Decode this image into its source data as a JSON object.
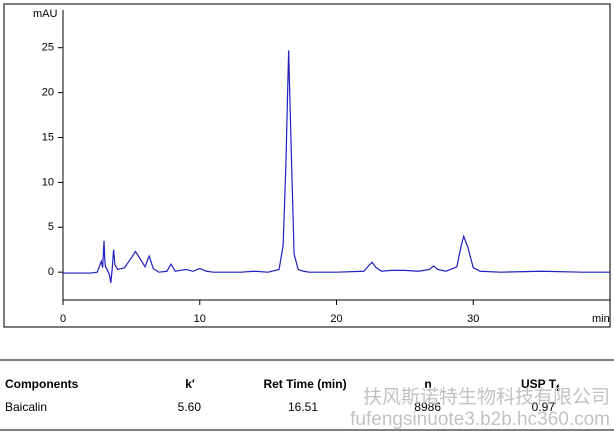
{
  "chart_data": {
    "type": "line",
    "y_axis_label": "mAU",
    "x_axis_label": "min",
    "xlim": [
      0,
      40
    ],
    "xticks": [
      0,
      10,
      20,
      30
    ],
    "ylim": [
      -3.1,
      29.2
    ],
    "yticks": [
      0,
      5,
      10,
      15,
      20,
      25
    ],
    "series": [
      {
        "color": "#1f1fbf",
        "x": [
          0,
          1,
          2,
          2.5,
          2.7,
          2.8,
          2.9,
          3.0,
          3.05,
          3.1,
          3.2,
          3.4,
          3.5,
          3.6,
          3.7,
          3.8,
          4.0,
          4.5,
          5.0,
          5.3,
          5.6,
          6.0,
          6.3,
          6.6,
          7.0,
          7.6,
          7.9,
          8.2,
          9,
          9.5,
          10,
          10.5,
          11,
          13,
          14,
          15,
          15.8,
          16.1,
          16.3,
          16.5,
          16.7,
          16.9,
          17.2,
          17.6,
          18,
          20,
          22,
          22.4,
          22.6,
          22.9,
          23.3,
          24,
          25,
          26,
          26.8,
          27.1,
          27.4,
          28,
          28.8,
          29.1,
          29.3,
          29.6,
          30.0,
          30.5,
          32,
          35,
          38,
          40
        ],
        "values": [
          -0.1,
          -0.1,
          -0.1,
          0,
          0.8,
          1.2,
          0.5,
          3.5,
          1.5,
          0.6,
          0.4,
          -0.3,
          -1.2,
          0.4,
          2.5,
          0.8,
          0.3,
          0.5,
          1.6,
          2.3,
          1.6,
          0.6,
          1.8,
          0.4,
          0,
          0.1,
          0.9,
          0.1,
          0.3,
          0.1,
          0.4,
          0.1,
          0,
          0,
          0.1,
          0,
          0.3,
          3,
          12,
          24.7,
          13,
          2,
          0.3,
          0.1,
          0,
          0,
          0.1,
          0.8,
          1.1,
          0.5,
          0.1,
          0.2,
          0.2,
          0.1,
          0.3,
          0.7,
          0.3,
          0.1,
          0.6,
          2.8,
          4,
          2.8,
          0.5,
          0.1,
          0,
          0.1,
          0,
          0
        ]
      }
    ]
  },
  "table": {
    "headers": [
      "Components",
      "k′",
      "Ret Time (min)",
      "n",
      {
        "text": "USP T",
        "sub": "f"
      }
    ],
    "rows": [
      [
        "Baicalin",
        "5.60",
        "16.51",
        "8986",
        "0.97"
      ]
    ]
  },
  "watermark": {
    "company": "扶风斯诺特生物科技有限公司",
    "url": "fufengsinuote3.b2b.hc360.com"
  }
}
